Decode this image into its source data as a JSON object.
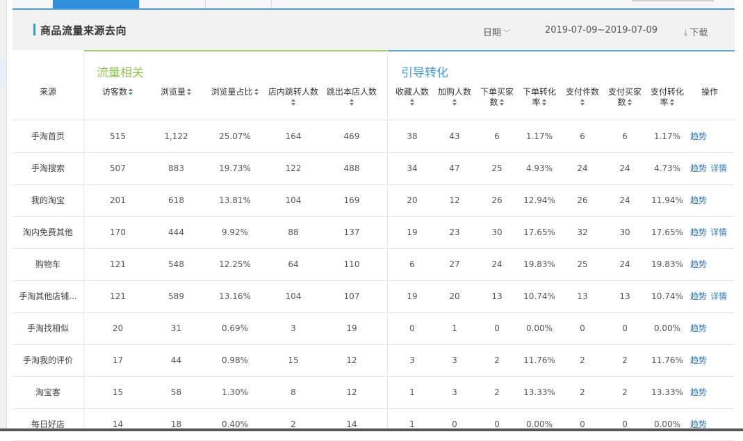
{
  "title": "商品流量来源去向",
  "toolbar": {
    "date_label": "日期",
    "date_range": "2019-07-09~2019-07-09",
    "download_label": "下载"
  },
  "groups": {
    "traffic": "流量相关",
    "guide": "引导转化"
  },
  "columns": {
    "source": "来源",
    "visitors": "访客数",
    "pageviews": "浏览量",
    "pv_ratio": "浏览量占比",
    "instore_jump": "店内跳转人数",
    "exit_store": "跳出本店人数",
    "favorites": "收藏人数",
    "addcart": "加购人数",
    "order_buyers_1": "下单买家",
    "order_buyers_2": "数",
    "order_rate_1": "下单转化",
    "order_rate_2": "率",
    "pay_items": "支付件数",
    "pay_buyers_1": "支付买家",
    "pay_buyers_2": "数",
    "pay_rate_1": "支付转化",
    "pay_rate_2": "率",
    "actions": "操作"
  },
  "action_labels": {
    "trend": "趋势",
    "detail": "详情"
  },
  "rows": [
    {
      "source": "手淘首页",
      "visitors": "515",
      "pageviews": "1,122",
      "pv_ratio": "25.07%",
      "instore_jump": "164",
      "exit_store": "469",
      "favorites": "38",
      "addcart": "43",
      "order_buyers": "6",
      "order_rate": "1.17%",
      "pay_items": "6",
      "pay_buyers": "6",
      "pay_rate": "1.17%",
      "has_detail": false
    },
    {
      "source": "手淘搜索",
      "visitors": "507",
      "pageviews": "883",
      "pv_ratio": "19.73%",
      "instore_jump": "122",
      "exit_store": "488",
      "favorites": "34",
      "addcart": "47",
      "order_buyers": "25",
      "order_rate": "4.93%",
      "pay_items": "24",
      "pay_buyers": "24",
      "pay_rate": "4.73%",
      "has_detail": true
    },
    {
      "source": "我的淘宝",
      "visitors": "201",
      "pageviews": "618",
      "pv_ratio": "13.81%",
      "instore_jump": "104",
      "exit_store": "169",
      "favorites": "20",
      "addcart": "12",
      "order_buyers": "26",
      "order_rate": "12.94%",
      "pay_items": "26",
      "pay_buyers": "24",
      "pay_rate": "11.94%",
      "has_detail": false
    },
    {
      "source": "淘内免费其他",
      "visitors": "170",
      "pageviews": "444",
      "pv_ratio": "9.92%",
      "instore_jump": "88",
      "exit_store": "137",
      "favorites": "19",
      "addcart": "23",
      "order_buyers": "30",
      "order_rate": "17.65%",
      "pay_items": "32",
      "pay_buyers": "30",
      "pay_rate": "17.65%",
      "has_detail": true
    },
    {
      "source": "购物车",
      "visitors": "121",
      "pageviews": "548",
      "pv_ratio": "12.25%",
      "instore_jump": "64",
      "exit_store": "110",
      "favorites": "6",
      "addcart": "27",
      "order_buyers": "24",
      "order_rate": "19.83%",
      "pay_items": "25",
      "pay_buyers": "24",
      "pay_rate": "19.83%",
      "has_detail": false
    },
    {
      "source": "手淘其他店铺...",
      "visitors": "121",
      "pageviews": "589",
      "pv_ratio": "13.16%",
      "instore_jump": "104",
      "exit_store": "107",
      "favorites": "19",
      "addcart": "20",
      "order_buyers": "13",
      "order_rate": "10.74%",
      "pay_items": "13",
      "pay_buyers": "13",
      "pay_rate": "10.74%",
      "has_detail": true
    },
    {
      "source": "手淘找相似",
      "visitors": "20",
      "pageviews": "31",
      "pv_ratio": "0.69%",
      "instore_jump": "3",
      "exit_store": "19",
      "favorites": "0",
      "addcart": "1",
      "order_buyers": "0",
      "order_rate": "0.00%",
      "pay_items": "0",
      "pay_buyers": "0",
      "pay_rate": "0.00%",
      "has_detail": false
    },
    {
      "source": "手淘我的评价",
      "visitors": "17",
      "pageviews": "44",
      "pv_ratio": "0.98%",
      "instore_jump": "15",
      "exit_store": "12",
      "favorites": "3",
      "addcart": "3",
      "order_buyers": "2",
      "order_rate": "11.76%",
      "pay_items": "2",
      "pay_buyers": "2",
      "pay_rate": "11.76%",
      "has_detail": false
    },
    {
      "source": "淘宝客",
      "visitors": "15",
      "pageviews": "58",
      "pv_ratio": "1.30%",
      "instore_jump": "8",
      "exit_store": "12",
      "favorites": "1",
      "addcart": "3",
      "order_buyers": "2",
      "order_rate": "13.33%",
      "pay_items": "2",
      "pay_buyers": "2",
      "pay_rate": "13.33%",
      "has_detail": false
    },
    {
      "source": "每日好店",
      "visitors": "14",
      "pageviews": "18",
      "pv_ratio": "0.40%",
      "instore_jump": "2",
      "exit_store": "14",
      "favorites": "1",
      "addcart": "0",
      "order_buyers": "0",
      "order_rate": "0.00%",
      "pay_items": "0",
      "pay_buyers": "0",
      "pay_rate": "0.00%",
      "has_detail": false
    }
  ]
}
